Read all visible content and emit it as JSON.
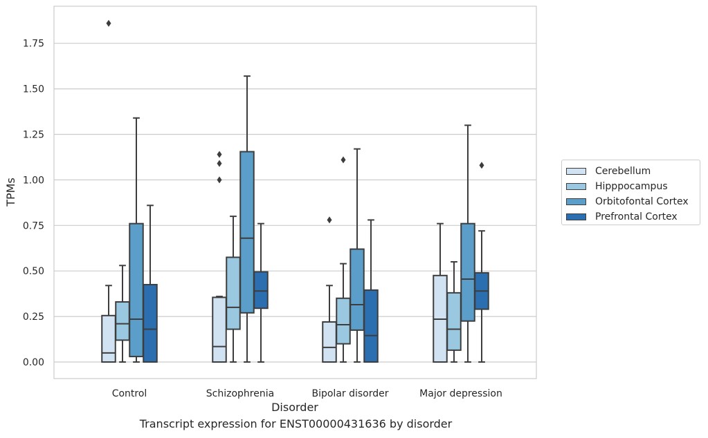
{
  "chart_data": {
    "type": "box",
    "caption": "Transcript expression for ENST00000431636 by disorder",
    "xlabel": "Disorder",
    "ylabel": "TPMs",
    "ylim": [
      -0.09,
      1.93
    ],
    "yticks": [
      "0.00",
      "0.25",
      "0.50",
      "0.75",
      "1.00",
      "1.25",
      "1.50",
      "1.75"
    ],
    "ytick_values": [
      0,
      0.25,
      0.5,
      0.75,
      1.0,
      1.25,
      1.5,
      1.75
    ],
    "grid": "horizontal",
    "legend_position": "outside-right",
    "categories": [
      "Control",
      "Schizophrenia",
      "Bipolar disorder",
      "Major depression"
    ],
    "series": [
      {
        "name": "Cerebellum",
        "color": "#d1e2f2",
        "boxes": [
          {
            "whisker_low": 0.0,
            "q1": 0.0,
            "median": 0.05,
            "q3": 0.255,
            "whisker_high": 0.42,
            "outliers": [
              1.86
            ]
          },
          {
            "whisker_low": 0.0,
            "q1": 0.0,
            "median": 0.085,
            "q3": 0.355,
            "whisker_high": 0.36,
            "outliers": [
              1.0,
              1.09,
              1.14
            ]
          },
          {
            "whisker_low": 0.0,
            "q1": 0.0,
            "median": 0.08,
            "q3": 0.22,
            "whisker_high": 0.42,
            "outliers": [
              0.78
            ]
          },
          {
            "whisker_low": 0.0,
            "q1": 0.0,
            "median": 0.235,
            "q3": 0.475,
            "whisker_high": 0.76,
            "outliers": []
          }
        ]
      },
      {
        "name": "Hipppocampus",
        "color": "#9ac8e0",
        "boxes": [
          {
            "whisker_low": 0.0,
            "q1": 0.12,
            "median": 0.21,
            "q3": 0.33,
            "whisker_high": 0.53,
            "outliers": []
          },
          {
            "whisker_low": 0.0,
            "q1": 0.18,
            "median": 0.3,
            "q3": 0.575,
            "whisker_high": 0.8,
            "outliers": []
          },
          {
            "whisker_low": 0.0,
            "q1": 0.1,
            "median": 0.205,
            "q3": 0.35,
            "whisker_high": 0.54,
            "outliers": [
              1.11
            ]
          },
          {
            "whisker_low": 0.0,
            "q1": 0.065,
            "median": 0.18,
            "q3": 0.38,
            "whisker_high": 0.55,
            "outliers": []
          }
        ]
      },
      {
        "name": "Orbitofontal Cortex",
        "color": "#5a9ec9",
        "boxes": [
          {
            "whisker_low": 0.0,
            "q1": 0.03,
            "median": 0.235,
            "q3": 0.76,
            "whisker_high": 1.34,
            "outliers": []
          },
          {
            "whisker_low": 0.0,
            "q1": 0.27,
            "median": 0.68,
            "q3": 1.155,
            "whisker_high": 1.57,
            "outliers": []
          },
          {
            "whisker_low": 0.0,
            "q1": 0.175,
            "median": 0.315,
            "q3": 0.62,
            "whisker_high": 1.17,
            "outliers": []
          },
          {
            "whisker_low": 0.0,
            "q1": 0.225,
            "median": 0.455,
            "q3": 0.76,
            "whisker_high": 1.3,
            "outliers": []
          }
        ]
      },
      {
        "name": "Prefrontal Cortex",
        "color": "#2c6fb0",
        "boxes": [
          {
            "whisker_low": 0.0,
            "q1": 0.0,
            "median": 0.18,
            "q3": 0.425,
            "whisker_high": 0.86,
            "outliers": []
          },
          {
            "whisker_low": 0.0,
            "q1": 0.295,
            "median": 0.39,
            "q3": 0.495,
            "whisker_high": 0.76,
            "outliers": []
          },
          {
            "whisker_low": 0.0,
            "q1": 0.0,
            "median": 0.145,
            "q3": 0.395,
            "whisker_high": 0.78,
            "outliers": []
          },
          {
            "whisker_low": 0.0,
            "q1": 0.29,
            "median": 0.39,
            "q3": 0.49,
            "whisker_high": 0.72,
            "outliers": [
              1.08
            ]
          }
        ]
      }
    ]
  }
}
